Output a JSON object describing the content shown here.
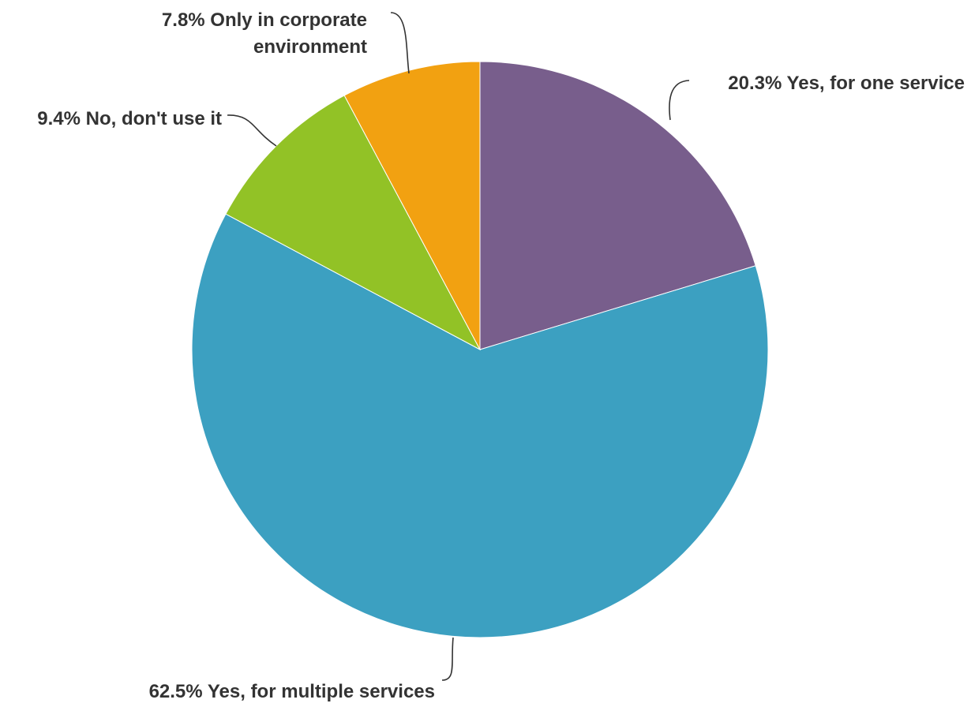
{
  "chart_data": {
    "type": "pie",
    "start_angle_deg": 0,
    "direction": "clockwise",
    "slices": [
      {
        "label": "20.3% Yes, for one service",
        "value": 20.3,
        "color": "#785e8c"
      },
      {
        "label": "62.5% Yes, for multiple services",
        "value": 62.5,
        "color": "#3ca0c1"
      },
      {
        "label": "9.4% No, don't use it",
        "value": 9.4,
        "color": "#92c226"
      },
      {
        "label": "7.8% Only in corporate environment",
        "value": 7.8,
        "color": "#f2a111"
      }
    ]
  }
}
